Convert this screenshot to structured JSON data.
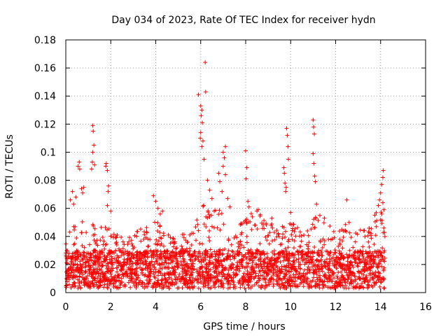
{
  "chart_data": {
    "type": "scatter",
    "title": "Day 034 of 2023, Rate Of TEC Index for receiver hydn",
    "xlabel": "GPS time / hours",
    "ylabel": "ROTI / TECUs",
    "xlim": [
      0,
      16
    ],
    "ylim": [
      0,
      0.18
    ],
    "x_ticks": [
      "0",
      "2",
      "4",
      "6",
      "8",
      "10",
      "12",
      "14",
      "16"
    ],
    "y_ticks": [
      "0",
      "0.02",
      "0.04",
      "0.06",
      "0.08",
      "0.1",
      "0.12",
      "0.14",
      "0.16",
      "0.18"
    ],
    "grid": true,
    "marker": "plus",
    "series": [
      {
        "color": "#ff0000",
        "background": {
          "x_range": [
            0,
            14.2
          ],
          "y_typical": [
            0.003,
            0.03
          ],
          "envelope": [
            [
              0.0,
              0.045
            ],
            [
              0.5,
              0.055
            ],
            [
              1.0,
              0.048
            ],
            [
              1.5,
              0.05
            ],
            [
              2.0,
              0.045
            ],
            [
              2.5,
              0.042
            ],
            [
              3.0,
              0.048
            ],
            [
              3.5,
              0.045
            ],
            [
              4.0,
              0.052
            ],
            [
              4.5,
              0.042
            ],
            [
              5.0,
              0.04
            ],
            [
              5.5,
              0.045
            ],
            [
              6.0,
              0.065
            ],
            [
              6.5,
              0.06
            ],
            [
              7.0,
              0.06
            ],
            [
              7.5,
              0.042
            ],
            [
              8.0,
              0.055
            ],
            [
              8.5,
              0.06
            ],
            [
              9.0,
              0.055
            ],
            [
              9.5,
              0.05
            ],
            [
              10.0,
              0.05
            ],
            [
              10.5,
              0.045
            ],
            [
              11.0,
              0.055
            ],
            [
              11.5,
              0.05
            ],
            [
              12.0,
              0.045
            ],
            [
              12.5,
              0.05
            ],
            [
              13.0,
              0.045
            ],
            [
              13.5,
              0.048
            ],
            [
              14.0,
              0.065
            ],
            [
              14.2,
              0.045
            ]
          ]
        },
        "points": [
          [
            0.2,
            0.066
          ],
          [
            0.3,
            0.072
          ],
          [
            0.35,
            0.063
          ],
          [
            0.45,
            0.068
          ],
          [
            0.55,
            0.09
          ],
          [
            0.6,
            0.093
          ],
          [
            0.62,
            0.088
          ],
          [
            0.7,
            0.074
          ],
          [
            0.75,
            0.071
          ],
          [
            0.8,
            0.075
          ],
          [
            1.2,
            0.119
          ],
          [
            1.22,
            0.115
          ],
          [
            1.25,
            0.105
          ],
          [
            1.2,
            0.1
          ],
          [
            1.18,
            0.093
          ],
          [
            1.15,
            0.088
          ],
          [
            1.28,
            0.091
          ],
          [
            1.8,
            0.092
          ],
          [
            1.78,
            0.09
          ],
          [
            1.85,
            0.087
          ],
          [
            1.9,
            0.076
          ],
          [
            1.88,
            0.072
          ],
          [
            1.85,
            0.062
          ],
          [
            2.0,
            0.058
          ],
          [
            3.9,
            0.069
          ],
          [
            4.0,
            0.065
          ],
          [
            4.1,
            0.06
          ],
          [
            4.2,
            0.056
          ],
          [
            4.3,
            0.058
          ],
          [
            5.9,
            0.141
          ],
          [
            6.0,
            0.133
          ],
          [
            6.05,
            0.13
          ],
          [
            6.02,
            0.126
          ],
          [
            6.07,
            0.121
          ],
          [
            6.0,
            0.114
          ],
          [
            5.98,
            0.11
          ],
          [
            6.1,
            0.108
          ],
          [
            6.05,
            0.104
          ],
          [
            6.15,
            0.095
          ],
          [
            6.2,
            0.164
          ],
          [
            6.22,
            0.143
          ],
          [
            6.3,
            0.08
          ],
          [
            6.4,
            0.073
          ],
          [
            6.5,
            0.067
          ],
          [
            6.6,
            0.058
          ],
          [
            6.8,
            0.085
          ],
          [
            6.85,
            0.079
          ],
          [
            6.95,
            0.072
          ],
          [
            7.0,
            0.1
          ],
          [
            7.05,
            0.096
          ],
          [
            7.1,
            0.104
          ],
          [
            7.0,
            0.09
          ],
          [
            7.1,
            0.084
          ],
          [
            7.2,
            0.067
          ],
          [
            7.3,
            0.061
          ],
          [
            8.0,
            0.101
          ],
          [
            8.05,
            0.089
          ],
          [
            8.02,
            0.081
          ],
          [
            8.1,
            0.065
          ],
          [
            8.15,
            0.061
          ],
          [
            8.3,
            0.054
          ],
          [
            8.5,
            0.058
          ],
          [
            9.7,
            0.089
          ],
          [
            9.72,
            0.085
          ],
          [
            9.75,
            0.078
          ],
          [
            9.8,
            0.075
          ],
          [
            9.82,
            0.117
          ],
          [
            9.85,
            0.112
          ],
          [
            9.88,
            0.104
          ],
          [
            9.9,
            0.095
          ],
          [
            9.78,
            0.072
          ],
          [
            10.0,
            0.057
          ],
          [
            11.0,
            0.123
          ],
          [
            11.02,
            0.118
          ],
          [
            11.05,
            0.113
          ],
          [
            11.0,
            0.099
          ],
          [
            11.03,
            0.092
          ],
          [
            11.07,
            0.083
          ],
          [
            11.1,
            0.079
          ],
          [
            11.15,
            0.063
          ],
          [
            11.3,
            0.055
          ],
          [
            11.5,
            0.053
          ],
          [
            12.5,
            0.066
          ],
          [
            12.6,
            0.05
          ],
          [
            13.9,
            0.062
          ],
          [
            13.95,
            0.066
          ],
          [
            14.0,
            0.071
          ],
          [
            14.05,
            0.077
          ],
          [
            14.1,
            0.082
          ],
          [
            14.12,
            0.087
          ],
          [
            14.1,
            0.064
          ],
          [
            14.15,
            0.059
          ],
          [
            14.05,
            0.056
          ]
        ]
      }
    ]
  }
}
